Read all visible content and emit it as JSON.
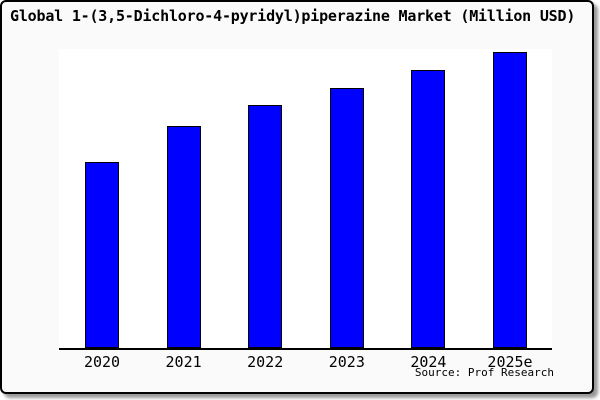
{
  "chart_data": {
    "type": "bar",
    "title": "Global 1-(3,5-Dichloro-4-pyridyl)piperazine Market (Million USD)",
    "categories": [
      "2020",
      "2021",
      "2022",
      "2023",
      "2024",
      "2025e"
    ],
    "values": [
      63,
      75,
      82,
      88,
      94,
      100
    ],
    "values_note": "No y-axis scale or gridlines shown; values are relative bar heights with the 2025e bar normalized to 100",
    "xlabel": "",
    "ylabel": "",
    "ylim": [
      0,
      101
    ],
    "grid": false,
    "legend": false,
    "bar_color": "#0000ff",
    "bar_border_color": "#000000",
    "source_note": "Source: Prof Research"
  },
  "colors": {
    "page_background": "#fafafa",
    "plot_background": "#ffffff",
    "frame_border": "#000000",
    "frame_shadow": "#999999",
    "axis_line": "#000000",
    "text": "#000000"
  }
}
